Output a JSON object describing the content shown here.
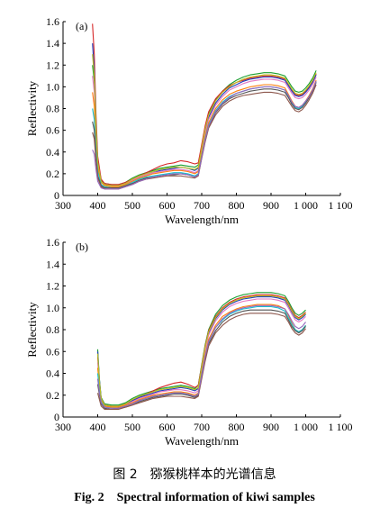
{
  "chart_data": [
    {
      "type": "line",
      "panel_label": "(a)",
      "xlabel": "Wavelength/nm",
      "ylabel": "Reflectivity",
      "xlim": [
        300,
        1100
      ],
      "ylim": [
        0,
        1.6
      ],
      "x_ticks": [
        300,
        400,
        500,
        600,
        700,
        800,
        900,
        1000,
        1100
      ],
      "x_tick_labels": [
        "300",
        "400",
        "500",
        "600",
        "700",
        "800",
        "900",
        "1 000",
        "1 100"
      ],
      "y_ticks": [
        0,
        0.2,
        0.4,
        0.6,
        0.8,
        1.0,
        1.2,
        1.4,
        1.6
      ],
      "y_tick_labels": [
        "0",
        "0.2",
        "0.4",
        "0.6",
        "0.8",
        "1.0",
        "1.2",
        "1.4",
        "1.6"
      ],
      "grid": false,
      "legend": "none",
      "x": [
        385,
        390,
        395,
        400,
        410,
        420,
        440,
        460,
        480,
        500,
        520,
        540,
        560,
        580,
        600,
        620,
        640,
        660,
        680,
        690,
        700,
        710,
        720,
        740,
        760,
        780,
        800,
        820,
        840,
        860,
        880,
        900,
        920,
        940,
        950,
        960,
        970,
        980,
        990,
        1000,
        1010,
        1020,
        1030
      ],
      "series": [
        {
          "color": "#1a9e2f",
          "values": [
            1.2,
            1.05,
            0.62,
            0.32,
            0.14,
            0.11,
            0.1,
            0.1,
            0.12,
            0.16,
            0.19,
            0.21,
            0.23,
            0.25,
            0.26,
            0.27,
            0.28,
            0.27,
            0.26,
            0.28,
            0.45,
            0.62,
            0.75,
            0.88,
            0.96,
            1.02,
            1.06,
            1.09,
            1.11,
            1.12,
            1.13,
            1.13,
            1.12,
            1.1,
            1.05,
            1.0,
            0.96,
            0.95,
            0.96,
            0.99,
            1.03,
            1.08,
            1.15
          ]
        },
        {
          "color": "#d62728",
          "values": [
            1.58,
            1.3,
            0.75,
            0.36,
            0.15,
            0.11,
            0.1,
            0.1,
            0.12,
            0.15,
            0.18,
            0.21,
            0.24,
            0.27,
            0.29,
            0.3,
            0.32,
            0.31,
            0.29,
            0.3,
            0.47,
            0.64,
            0.77,
            0.89,
            0.96,
            1.01,
            1.04,
            1.06,
            1.08,
            1.09,
            1.1,
            1.1,
            1.09,
            1.07,
            1.02,
            0.97,
            0.93,
            0.92,
            0.93,
            0.96,
            1.0,
            1.05,
            1.12
          ]
        },
        {
          "color": "#1f3fbf",
          "values": [
            1.4,
            1.15,
            0.66,
            0.3,
            0.13,
            0.1,
            0.09,
            0.09,
            0.11,
            0.14,
            0.17,
            0.19,
            0.21,
            0.23,
            0.24,
            0.25,
            0.26,
            0.25,
            0.23,
            0.25,
            0.42,
            0.59,
            0.72,
            0.85,
            0.93,
            0.99,
            1.02,
            1.05,
            1.07,
            1.08,
            1.09,
            1.09,
            1.08,
            1.06,
            1.01,
            0.96,
            0.92,
            0.91,
            0.92,
            0.95,
            0.99,
            1.04,
            1.11
          ]
        },
        {
          "color": "#e377c2",
          "values": [
            1.1,
            0.95,
            0.55,
            0.28,
            0.12,
            0.1,
            0.09,
            0.09,
            0.11,
            0.14,
            0.17,
            0.19,
            0.21,
            0.22,
            0.23,
            0.24,
            0.24,
            0.23,
            0.21,
            0.23,
            0.4,
            0.57,
            0.7,
            0.83,
            0.91,
            0.97,
            1.0,
            1.03,
            1.05,
            1.06,
            1.07,
            1.07,
            1.06,
            1.04,
            0.99,
            0.94,
            0.9,
            0.89,
            0.9,
            0.93,
            0.97,
            1.02,
            1.09
          ]
        },
        {
          "color": "#ff7f0e",
          "values": [
            0.95,
            0.82,
            0.48,
            0.25,
            0.12,
            0.09,
            0.08,
            0.08,
            0.1,
            0.13,
            0.16,
            0.18,
            0.2,
            0.21,
            0.22,
            0.23,
            0.23,
            0.22,
            0.2,
            0.22,
            0.38,
            0.54,
            0.67,
            0.8,
            0.88,
            0.93,
            0.96,
            0.98,
            1.0,
            1.01,
            1.02,
            1.02,
            1.01,
            0.99,
            0.93,
            0.87,
            0.82,
            0.81,
            0.83,
            0.87,
            0.92,
            0.98,
            1.06
          ]
        },
        {
          "color": "#17becf",
          "values": [
            0.8,
            0.7,
            0.42,
            0.22,
            0.1,
            0.08,
            0.07,
            0.07,
            0.09,
            0.12,
            0.15,
            0.17,
            0.18,
            0.19,
            0.2,
            0.21,
            0.21,
            0.2,
            0.18,
            0.2,
            0.36,
            0.52,
            0.65,
            0.78,
            0.86,
            0.91,
            0.94,
            0.96,
            0.98,
            0.99,
            1.0,
            1.0,
            0.99,
            0.97,
            0.91,
            0.85,
            0.81,
            0.8,
            0.82,
            0.86,
            0.91,
            0.97,
            1.05
          ]
        },
        {
          "color": "#555555",
          "values": [
            0.68,
            0.6,
            0.36,
            0.18,
            0.09,
            0.07,
            0.07,
            0.07,
            0.09,
            0.11,
            0.14,
            0.16,
            0.17,
            0.18,
            0.19,
            0.19,
            0.2,
            0.19,
            0.17,
            0.19,
            0.35,
            0.5,
            0.63,
            0.76,
            0.84,
            0.89,
            0.92,
            0.94,
            0.96,
            0.97,
            0.98,
            0.98,
            0.97,
            0.95,
            0.9,
            0.84,
            0.8,
            0.79,
            0.81,
            0.85,
            0.9,
            0.96,
            1.04
          ]
        },
        {
          "color": "#8c564b",
          "values": [
            0.58,
            0.52,
            0.32,
            0.16,
            0.08,
            0.06,
            0.06,
            0.06,
            0.08,
            0.1,
            0.13,
            0.15,
            0.16,
            0.17,
            0.18,
            0.18,
            0.18,
            0.17,
            0.16,
            0.18,
            0.34,
            0.49,
            0.62,
            0.74,
            0.82,
            0.87,
            0.9,
            0.92,
            0.93,
            0.94,
            0.95,
            0.95,
            0.94,
            0.92,
            0.87,
            0.82,
            0.78,
            0.77,
            0.79,
            0.83,
            0.88,
            0.94,
            1.02
          ]
        },
        {
          "color": "#9467bd",
          "values": [
            0.42,
            0.38,
            0.24,
            0.13,
            0.07,
            0.06,
            0.06,
            0.06,
            0.08,
            0.1,
            0.13,
            0.15,
            0.17,
            0.18,
            0.19,
            0.2,
            0.2,
            0.19,
            0.17,
            0.19,
            0.35,
            0.51,
            0.64,
            0.77,
            0.85,
            0.9,
            0.94,
            0.96,
            0.98,
            0.99,
            1.0,
            1.0,
            0.99,
            0.97,
            0.92,
            0.86,
            0.82,
            0.81,
            0.83,
            0.87,
            0.91,
            0.97,
            1.05
          ]
        },
        {
          "color": "#bcbd22",
          "values": [
            1.3,
            1.1,
            0.64,
            0.31,
            0.13,
            0.1,
            0.09,
            0.09,
            0.11,
            0.15,
            0.18,
            0.2,
            0.22,
            0.24,
            0.25,
            0.26,
            0.26,
            0.25,
            0.24,
            0.26,
            0.44,
            0.61,
            0.74,
            0.87,
            0.95,
            1.0,
            1.04,
            1.07,
            1.09,
            1.1,
            1.11,
            1.11,
            1.1,
            1.08,
            1.03,
            0.98,
            0.94,
            0.93,
            0.94,
            0.97,
            1.01,
            1.06,
            1.13
          ]
        }
      ]
    },
    {
      "type": "line",
      "panel_label": "(b)",
      "xlabel": "Wavelength/nm",
      "ylabel": "Reflectivity",
      "xlim": [
        300,
        1100
      ],
      "ylim": [
        0,
        1.6
      ],
      "x_ticks": [
        300,
        400,
        500,
        600,
        700,
        800,
        900,
        1000,
        1100
      ],
      "x_tick_labels": [
        "300",
        "400",
        "500",
        "600",
        "700",
        "800",
        "900",
        "1 000",
        "1 100"
      ],
      "y_ticks": [
        0,
        0.2,
        0.4,
        0.6,
        0.8,
        1.0,
        1.2,
        1.4,
        1.6
      ],
      "y_tick_labels": [
        "0",
        "0.2",
        "0.4",
        "0.6",
        "0.8",
        "1.0",
        "1.2",
        "1.4",
        "1.6"
      ],
      "grid": false,
      "legend": "none",
      "x": [
        400,
        405,
        410,
        420,
        440,
        460,
        480,
        500,
        520,
        540,
        560,
        580,
        600,
        620,
        640,
        660,
        680,
        690,
        700,
        710,
        720,
        740,
        760,
        780,
        800,
        820,
        840,
        860,
        880,
        900,
        920,
        940,
        950,
        960,
        970,
        980,
        990,
        1000
      ],
      "series": [
        {
          "color": "#1a9e2f",
          "values": [
            0.62,
            0.35,
            0.18,
            0.12,
            0.11,
            0.11,
            0.13,
            0.17,
            0.2,
            0.22,
            0.24,
            0.26,
            0.27,
            0.28,
            0.29,
            0.28,
            0.26,
            0.29,
            0.48,
            0.66,
            0.8,
            0.94,
            1.02,
            1.07,
            1.1,
            1.12,
            1.13,
            1.14,
            1.14,
            1.14,
            1.13,
            1.11,
            1.06,
            1.0,
            0.95,
            0.93,
            0.95,
            0.98
          ]
        },
        {
          "color": "#d62728",
          "values": [
            0.55,
            0.32,
            0.17,
            0.11,
            0.1,
            0.1,
            0.12,
            0.15,
            0.18,
            0.21,
            0.24,
            0.27,
            0.29,
            0.31,
            0.32,
            0.3,
            0.27,
            0.29,
            0.47,
            0.65,
            0.79,
            0.92,
            1.0,
            1.05,
            1.08,
            1.1,
            1.11,
            1.12,
            1.12,
            1.12,
            1.11,
            1.09,
            1.04,
            0.98,
            0.93,
            0.91,
            0.93,
            0.96
          ]
        },
        {
          "color": "#1f3fbf",
          "values": [
            0.6,
            0.34,
            0.17,
            0.11,
            0.1,
            0.1,
            0.12,
            0.15,
            0.18,
            0.2,
            0.22,
            0.24,
            0.25,
            0.26,
            0.27,
            0.26,
            0.24,
            0.26,
            0.45,
            0.63,
            0.77,
            0.9,
            0.98,
            1.03,
            1.06,
            1.08,
            1.09,
            1.1,
            1.1,
            1.1,
            1.09,
            1.07,
            1.02,
            0.96,
            0.91,
            0.89,
            0.91,
            0.94
          ]
        },
        {
          "color": "#e377c2",
          "values": [
            0.5,
            0.3,
            0.16,
            0.1,
            0.09,
            0.09,
            0.11,
            0.14,
            0.17,
            0.19,
            0.21,
            0.23,
            0.24,
            0.25,
            0.25,
            0.24,
            0.22,
            0.24,
            0.43,
            0.61,
            0.75,
            0.88,
            0.96,
            1.01,
            1.04,
            1.06,
            1.07,
            1.08,
            1.08,
            1.08,
            1.07,
            1.05,
            1.0,
            0.94,
            0.89,
            0.87,
            0.89,
            0.92
          ]
        },
        {
          "color": "#ff7f0e",
          "values": [
            0.45,
            0.27,
            0.15,
            0.1,
            0.09,
            0.09,
            0.11,
            0.13,
            0.16,
            0.18,
            0.2,
            0.21,
            0.22,
            0.23,
            0.23,
            0.22,
            0.2,
            0.22,
            0.4,
            0.57,
            0.71,
            0.84,
            0.92,
            0.96,
            0.99,
            1.01,
            1.02,
            1.03,
            1.03,
            1.03,
            1.02,
            0.99,
            0.93,
            0.86,
            0.8,
            0.78,
            0.8,
            0.84
          ]
        },
        {
          "color": "#17becf",
          "values": [
            0.4,
            0.25,
            0.14,
            0.09,
            0.08,
            0.08,
            0.1,
            0.12,
            0.15,
            0.17,
            0.19,
            0.2,
            0.21,
            0.22,
            0.22,
            0.21,
            0.19,
            0.21,
            0.39,
            0.55,
            0.69,
            0.82,
            0.89,
            0.94,
            0.97,
            0.99,
            1.0,
            1.01,
            1.01,
            1.01,
            1.0,
            0.97,
            0.91,
            0.85,
            0.8,
            0.78,
            0.8,
            0.84
          ]
        },
        {
          "color": "#555555",
          "values": [
            0.3,
            0.2,
            0.12,
            0.08,
            0.07,
            0.08,
            0.09,
            0.11,
            0.14,
            0.16,
            0.18,
            0.19,
            0.2,
            0.21,
            0.21,
            0.2,
            0.18,
            0.2,
            0.37,
            0.53,
            0.67,
            0.79,
            0.87,
            0.92,
            0.95,
            0.97,
            0.98,
            0.98,
            0.98,
            0.98,
            0.97,
            0.95,
            0.89,
            0.83,
            0.79,
            0.77,
            0.79,
            0.83
          ]
        },
        {
          "color": "#8c564b",
          "values": [
            0.22,
            0.16,
            0.1,
            0.07,
            0.07,
            0.07,
            0.09,
            0.11,
            0.13,
            0.15,
            0.17,
            0.18,
            0.19,
            0.19,
            0.19,
            0.18,
            0.17,
            0.19,
            0.35,
            0.51,
            0.65,
            0.77,
            0.84,
            0.89,
            0.92,
            0.94,
            0.95,
            0.95,
            0.95,
            0.95,
            0.94,
            0.92,
            0.87,
            0.81,
            0.77,
            0.75,
            0.77,
            0.81
          ]
        },
        {
          "color": "#9467bd",
          "values": [
            0.35,
            0.22,
            0.13,
            0.09,
            0.08,
            0.08,
            0.1,
            0.12,
            0.15,
            0.17,
            0.19,
            0.2,
            0.21,
            0.22,
            0.22,
            0.21,
            0.19,
            0.21,
            0.38,
            0.55,
            0.69,
            0.82,
            0.9,
            0.95,
            0.98,
            1.0,
            1.01,
            1.02,
            1.02,
            1.02,
            1.01,
            0.99,
            0.94,
            0.88,
            0.83,
            0.81,
            0.83,
            0.87
          ]
        },
        {
          "color": "#bcbd22",
          "values": [
            0.58,
            0.33,
            0.17,
            0.11,
            0.1,
            0.1,
            0.12,
            0.16,
            0.19,
            0.21,
            0.23,
            0.25,
            0.26,
            0.27,
            0.28,
            0.27,
            0.25,
            0.27,
            0.46,
            0.64,
            0.78,
            0.91,
            0.99,
            1.04,
            1.07,
            1.09,
            1.1,
            1.11,
            1.11,
            1.11,
            1.1,
            1.08,
            1.03,
            0.97,
            0.92,
            0.9,
            0.92,
            0.95
          ]
        }
      ]
    }
  ],
  "caption": {
    "cn": "图 2　猕猴桃样本的光谱信息",
    "en": "Fig. 2　Spectral information of kiwi samples"
  }
}
